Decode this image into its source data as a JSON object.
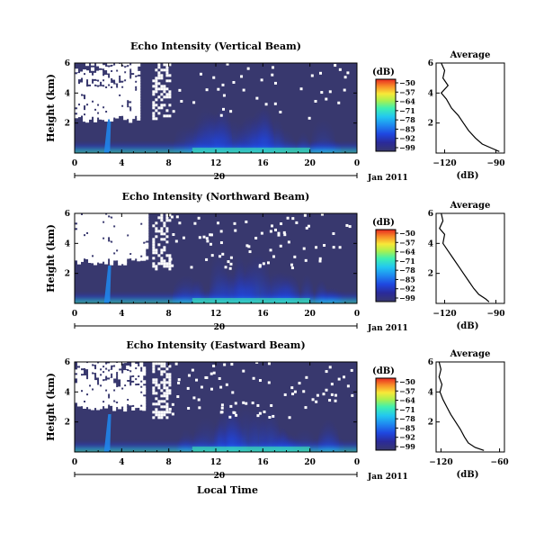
{
  "figure": {
    "date_label": "Jan 2011",
    "xlabel": "Local Time",
    "average_title": "Average",
    "average_xlabel": "(dB)",
    "colorbar_unit": "(dB)",
    "ylabel": "Height (km)"
  },
  "colors": {
    "background_field": "#38386e",
    "no_data": "#ffffff",
    "colormap": [
      "#38386e",
      "#2a2a9a",
      "#1f47e0",
      "#1f88f0",
      "#22c8f0",
      "#40f0b0",
      "#a8f050",
      "#f8e838",
      "#f89028",
      "#e82820"
    ]
  },
  "chart_data": [
    {
      "type": "heatmap",
      "title": "Echo Intensity (Vertical Beam)",
      "ylabel": "Height (km)",
      "x_ticks": [
        "0",
        "4",
        "8",
        "12",
        "16",
        "20",
        "0"
      ],
      "day_tick": "20",
      "y_ticks": [
        "6",
        "4",
        "2"
      ],
      "xlim": [
        0,
        24
      ],
      "ylim": [
        0,
        6
      ],
      "colorbar": {
        "unit": "(dB)",
        "ticks": [
          "-50",
          "-57",
          "-64",
          "-71",
          "-78",
          "-85",
          "-92",
          "-99"
        ]
      },
      "average_profile": {
        "title": "Average",
        "xlabel": "(dB)",
        "x_ticks": [
          "-120",
          "-90"
        ],
        "y_ticks": [
          "6",
          "4",
          "2"
        ],
        "xlim": [
          -125,
          -85
        ],
        "ylim": [
          0,
          6
        ],
        "height_km": [
          6.0,
          5.5,
          5.0,
          4.5,
          4.0,
          3.6,
          3.0,
          2.5,
          2.0,
          1.5,
          1.0,
          0.6,
          0.3,
          0.1
        ],
        "db": [
          -122,
          -120,
          -121,
          -118,
          -122,
          -119,
          -116,
          -112,
          -109,
          -106,
          -102,
          -98,
          -92,
          -88
        ]
      }
    },
    {
      "type": "heatmap",
      "title": "Echo Intensity (Northward Beam)",
      "ylabel": "Height (km)",
      "x_ticks": [
        "0",
        "4",
        "8",
        "12",
        "16",
        "20",
        "0"
      ],
      "day_tick": "20",
      "y_ticks": [
        "6",
        "4",
        "2"
      ],
      "xlim": [
        0,
        24
      ],
      "ylim": [
        0,
        6
      ],
      "colorbar": {
        "unit": "(dB)",
        "ticks": [
          "-50",
          "-57",
          "-64",
          "-71",
          "-78",
          "-85",
          "-92",
          "-99"
        ]
      },
      "average_profile": {
        "title": "Average",
        "xlabel": "(dB)",
        "x_ticks": [
          "-120",
          "-90"
        ],
        "y_ticks": [
          "6",
          "4",
          "2"
        ],
        "xlim": [
          -125,
          -85
        ],
        "ylim": [
          0,
          6
        ],
        "height_km": [
          6.0,
          5.5,
          5.0,
          4.6,
          4.0,
          3.5,
          3.0,
          2.5,
          2.0,
          1.5,
          1.0,
          0.6,
          0.3,
          0.1
        ],
        "db": [
          -122,
          -121,
          -123,
          -120,
          -121,
          -118,
          -115,
          -112,
          -109,
          -106,
          -103,
          -100,
          -96,
          -94
        ]
      }
    },
    {
      "type": "heatmap",
      "title": "Echo Intensity (Eastward Beam)",
      "ylabel": "Height (km)",
      "x_ticks": [
        "0",
        "4",
        "8",
        "12",
        "16",
        "20",
        "0"
      ],
      "day_tick": "20",
      "y_ticks": [
        "6",
        "4",
        "2"
      ],
      "xlim": [
        0,
        24
      ],
      "ylim": [
        0,
        6
      ],
      "colorbar": {
        "unit": "(dB)",
        "ticks": [
          "-50",
          "-57",
          "-64",
          "-71",
          "-78",
          "-85",
          "-92",
          "-99"
        ]
      },
      "average_profile": {
        "title": "Average",
        "xlabel": "(dB)",
        "x_ticks": [
          "-120",
          "-60"
        ],
        "y_ticks": [
          "6",
          "4",
          "2"
        ],
        "xlim": [
          -125,
          -55
        ],
        "ylim": [
          0,
          6
        ],
        "height_km": [
          6.0,
          5.5,
          5.0,
          4.5,
          4.0,
          3.5,
          3.0,
          2.5,
          2.0,
          1.5,
          1.0,
          0.6,
          0.3,
          0.1
        ],
        "db": [
          -122,
          -120,
          -122,
          -119,
          -121,
          -118,
          -114,
          -110,
          -105,
          -100,
          -96,
          -92,
          -85,
          -76
        ]
      }
    }
  ]
}
